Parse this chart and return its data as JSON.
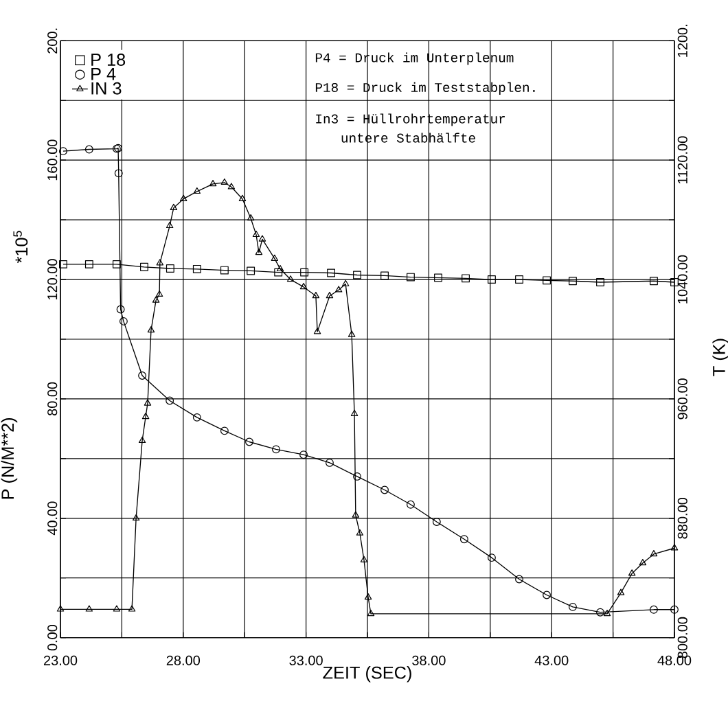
{
  "chart_data": {
    "type": "line",
    "xlabel": "ZEIT (SEC)",
    "ylabel": "P (N/M**2)",
    "y2label": "T (K)",
    "xlim": [
      23,
      48
    ],
    "xticks": [
      {
        "value": 23,
        "label": "23.00"
      },
      {
        "value": 25.5,
        "label": null
      },
      {
        "value": 28,
        "label": "28.00"
      },
      {
        "value": 30.5,
        "label": null
      },
      {
        "value": 33,
        "label": "33.00"
      },
      {
        "value": 35.5,
        "label": null
      },
      {
        "value": 38,
        "label": "38.00"
      },
      {
        "value": 40.5,
        "label": null
      },
      {
        "value": 43,
        "label": "43.00"
      },
      {
        "value": 45.5,
        "label": null
      },
      {
        "value": 48,
        "label": "48.00"
      }
    ],
    "ylim": [
      0,
      200
    ],
    "yticks": [
      {
        "value": 0,
        "label": "0.00"
      },
      {
        "value": 20,
        "label": null
      },
      {
        "value": 40,
        "label": "40.00"
      },
      {
        "value": 60,
        "label": null
      },
      {
        "value": 80,
        "label": "80.00"
      },
      {
        "value": 100,
        "label": null
      },
      {
        "value": 120,
        "label": "120.00"
      },
      {
        "value": 140,
        "label": null
      },
      {
        "value": 160,
        "label": "160.00"
      },
      {
        "value": 180,
        "label": null
      },
      {
        "value": 200,
        "label": "200."
      }
    ],
    "y2lim": [
      800,
      1200
    ],
    "y2ticks": [
      {
        "value": 800,
        "label": "800.00"
      },
      {
        "value": 840,
        "label": null
      },
      {
        "value": 880,
        "label": "880.00"
      },
      {
        "value": 920,
        "label": null
      },
      {
        "value": 960,
        "label": "960.00"
      },
      {
        "value": 1000,
        "label": null
      },
      {
        "value": 1040,
        "label": "1040.00"
      },
      {
        "value": 1080,
        "label": null
      },
      {
        "value": 1120,
        "label": "1120.00"
      },
      {
        "value": 1160,
        "label": null
      },
      {
        "value": 1200,
        "label": "1200."
      }
    ],
    "grid": true,
    "legend": "top left",
    "annotations": [
      "P4 = Druck im Unterplenum",
      "P18 = Druck im Teststabplen.",
      "In3 = Hüllrohrtemperatur",
      "untere Stabhälfte",
      "*10$^{5}$"
    ],
    "series": [
      {
        "name": "P 18",
        "color": "#000000",
        "marker": "square",
        "x": [
          23.11,
          24.17,
          25.29,
          26.41,
          27.47,
          28.56,
          29.68,
          30.75,
          31.87,
          32.93,
          34.02,
          35.08,
          36.2,
          37.26,
          38.38,
          39.5,
          40.56,
          41.68,
          42.8,
          43.86,
          44.98,
          47.16,
          48.0
        ],
        "values": [
          125.1,
          125.1,
          125.1,
          124.2,
          123.7,
          123.5,
          123.1,
          122.9,
          122.4,
          122.4,
          122.2,
          121.5,
          121.3,
          120.8,
          120.6,
          120.4,
          120.0,
          120.0,
          119.7,
          119.5,
          119.1,
          119.5,
          119.1
        ]
      },
      {
        "name": "P  4",
        "color": "#000000",
        "marker": "circle",
        "x": [
          23.11,
          24.17,
          25.29,
          25.35,
          25.37,
          25.45,
          25.57,
          26.33,
          27.45,
          28.56,
          29.68,
          30.69,
          31.78,
          32.9,
          33.96,
          35.08,
          36.2,
          37.26,
          38.32,
          39.44,
          40.56,
          41.68,
          42.8,
          43.86,
          44.98,
          47.16,
          48.0
        ],
        "values": [
          163.0,
          163.6,
          163.8,
          164.0,
          155.6,
          110,
          106,
          87.8,
          79.4,
          73.8,
          69.3,
          65.6,
          63.1,
          61.3,
          58.6,
          54.0,
          49.5,
          44.6,
          38.8,
          33.0,
          26.8,
          19.6,
          14.3,
          10.3,
          8.5,
          9.4,
          9.4
        ]
      },
      {
        "name": "IN 3",
        "color": "#000000",
        "marker": "triangle",
        "axis": "y2",
        "x": [
          23.0,
          24.17,
          25.29,
          25.91,
          26.08,
          26.33,
          26.47,
          26.55,
          26.69,
          26.89,
          27.03,
          27.05,
          27.45,
          27.61,
          28.01,
          28.56,
          29.21,
          29.68,
          29.96,
          30.41,
          30.75,
          30.97,
          31.08,
          31.22,
          31.72,
          31.95,
          32.37,
          32.9,
          33.4,
          33.46,
          33.96,
          34.33,
          34.61,
          34.86,
          34.97,
          35.02,
          35.19,
          35.36,
          35.53,
          35.64,
          45.26,
          45.82,
          46.27,
          46.71,
          47.16,
          48.0
        ],
        "values": [
          819,
          819,
          819,
          819,
          880,
          932,
          948,
          957,
          1006,
          1026,
          1030,
          1051,
          1076,
          1088,
          1094,
          1099,
          1104,
          1105,
          1102,
          1094,
          1081,
          1070,
          1058,
          1067,
          1054,
          1047,
          1040,
          1035,
          1029,
          1005,
          1029,
          1033,
          1037,
          1003,
          950,
          882,
          870,
          852,
          827,
          816,
          816,
          830,
          843,
          850,
          856,
          860
        ]
      }
    ]
  }
}
